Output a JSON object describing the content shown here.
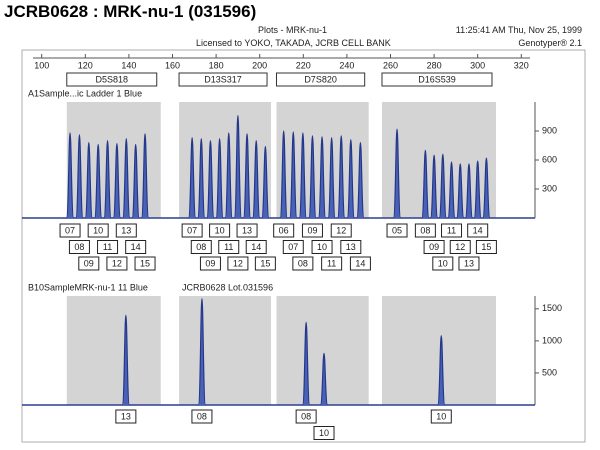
{
  "header": {
    "title": "JCRB0628 : MRK-nu-1 (031596)",
    "plot": "Plots - MRK-nu-1",
    "timestamp": "11:25:41 AM  Thu, Nov 25, 1999",
    "license": "Licensed to YOKO, TAKADA, JCRB CELL BANK",
    "software": "Genotyper® 2.1"
  },
  "chart_data": {
    "type": "electropherogram",
    "xlim": [
      96,
      324
    ],
    "xticks": [
      100,
      120,
      140,
      160,
      180,
      200,
      220,
      240,
      260,
      280,
      300,
      320
    ],
    "markers": [
      {
        "name": "D5S818",
        "range": [
          111.5,
          154.6
        ]
      },
      {
        "name": "D13S317",
        "range": [
          163,
          205.2
        ]
      },
      {
        "name": "D7S820",
        "range": [
          207.7,
          250
        ]
      },
      {
        "name": "D16S539",
        "range": [
          256.1,
          308.4
        ]
      }
    ],
    "panels": [
      {
        "title": "A1Sample...ic Ladder  1 Blue",
        "ylim": [
          0,
          1200
        ],
        "yticks": [
          300,
          600,
          900
        ],
        "x": [
          113,
          117.3,
          121.6,
          125.9,
          130.2,
          134.5,
          138.8,
          143.1,
          147.4,
          169,
          173.2,
          177.4,
          181.6,
          185.8,
          190,
          194.2,
          198.4,
          202.6,
          211,
          215.4,
          219.8,
          224.2,
          228.6,
          233,
          237.4,
          241.8,
          246.2,
          263,
          276,
          280,
          284,
          288,
          292,
          296,
          300,
          304
        ],
        "values": [
          880,
          860,
          780,
          760,
          800,
          770,
          820,
          760,
          870,
          830,
          820,
          800,
          820,
          880,
          1060,
          870,
          800,
          740,
          900,
          890,
          880,
          850,
          840,
          830,
          850,
          810,
          780,
          920,
          700,
          650,
          660,
          580,
          560,
          560,
          590,
          620
        ],
        "alleles": [
          "07",
          "08",
          "09",
          "10",
          "11",
          "12",
          "13",
          "14",
          "15",
          "07",
          "08",
          "09",
          "10",
          "11",
          "12",
          "13",
          "14",
          "15",
          "06",
          "07",
          "08",
          "09",
          "10",
          "11",
          "12",
          "13",
          "14",
          "05",
          "08",
          "09",
          "10",
          "11",
          "12",
          "13",
          "14",
          "15"
        ]
      },
      {
        "title": "B10SampleMRK-nu-1  11 Blue",
        "note": "JCRB0628 Lot.031596",
        "ylim": [
          0,
          1700
        ],
        "yticks": [
          500,
          1000,
          1500
        ],
        "x": [
          138.6,
          173.5,
          221.3,
          229.5,
          283.3
        ],
        "values": [
          1400,
          1660,
          1290,
          806,
          1080
        ],
        "alleles": [
          "13",
          "08",
          "08",
          "10",
          "10"
        ]
      }
    ]
  }
}
